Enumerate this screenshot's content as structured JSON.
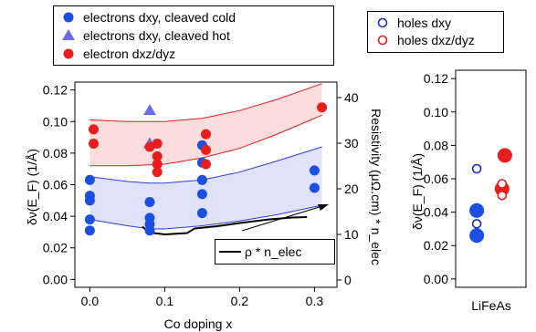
{
  "chart_data": [
    {
      "type": "scatter",
      "xlabel": "Co doping x",
      "ylabel": "δν(E_F) (1/Å)",
      "y2label": "Resistivity (μΩ.cm) * n_elec",
      "xlim": [
        -0.02,
        0.33
      ],
      "ylim": [
        -0.005,
        0.125
      ],
      "y2lim": [
        -1.6,
        43.4
      ],
      "xticks": [
        "0.0",
        "0.1",
        "0.2",
        "0.3"
      ],
      "xtick_values": [
        0.0,
        0.1,
        0.2,
        0.3
      ],
      "yticks": [
        "0.00",
        "0.02",
        "0.04",
        "0.06",
        "0.08",
        "0.10",
        "0.12"
      ],
      "ytick_values": [
        0.0,
        0.02,
        0.04,
        0.06,
        0.08,
        0.1,
        0.12
      ],
      "y2ticks": [
        "0",
        "10",
        "20",
        "30",
        "40"
      ],
      "y2tick_values": [
        0,
        10,
        20,
        30,
        40
      ],
      "series": [
        {
          "name": "electrons dxy, cleaved cold",
          "color": "#1a4fe0",
          "marker": "filled-circle",
          "points": [
            [
              0.0,
              0.063
            ],
            [
              0.0,
              0.053
            ],
            [
              0.0,
              0.05
            ],
            [
              0.0,
              0.038
            ],
            [
              0.0,
              0.031
            ],
            [
              0.08,
              0.049
            ],
            [
              0.08,
              0.039
            ],
            [
              0.08,
              0.035
            ],
            [
              0.08,
              0.031
            ],
            [
              0.15,
              0.085
            ],
            [
              0.15,
              0.074
            ],
            [
              0.15,
              0.063
            ],
            [
              0.15,
              0.054
            ],
            [
              0.15,
              0.042
            ],
            [
              0.3,
              0.069
            ],
            [
              0.3,
              0.058
            ]
          ]
        },
        {
          "name": "electrons dxy, cleaved hot",
          "color": "#6b6be6",
          "marker": "filled-triangle",
          "points": [
            [
              0.08,
              0.107
            ],
            [
              0.08,
              0.086
            ]
          ]
        },
        {
          "name": "electron dxz/dyz",
          "color": "#e81e1e",
          "marker": "filled-circle",
          "points": [
            [
              0.005,
              0.095
            ],
            [
              0.005,
              0.086
            ],
            [
              0.08,
              0.084
            ],
            [
              0.09,
              0.086
            ],
            [
              0.09,
              0.078
            ],
            [
              0.09,
              0.073
            ],
            [
              0.09,
              0.068
            ],
            [
              0.155,
              0.092
            ],
            [
              0.155,
              0.082
            ],
            [
              0.155,
              0.073
            ],
            [
              0.31,
              0.109
            ]
          ]
        },
        {
          "name": "ρ * n_elec",
          "color": "#000000",
          "axis": "y2",
          "marker": "line",
          "points": [
            [
              0.07,
              11.7
            ],
            [
              0.08,
              10.4
            ],
            [
              0.1,
              10.0
            ],
            [
              0.13,
              10.3
            ],
            [
              0.14,
              11.3
            ],
            [
              0.17,
              11.8
            ],
            [
              0.2,
              12.5
            ],
            [
              0.24,
              13.3
            ],
            [
              0.27,
              13.7
            ],
            [
              0.29,
              13.8
            ]
          ]
        }
      ],
      "bands": [
        {
          "color": "#e81e1e",
          "lower": [
            [
              0.0,
              0.072
            ],
            [
              0.05,
              0.072
            ],
            [
              0.1,
              0.073
            ],
            [
              0.15,
              0.077
            ],
            [
              0.2,
              0.083
            ],
            [
              0.25,
              0.092
            ],
            [
              0.31,
              0.104
            ]
          ],
          "upper": [
            [
              0.0,
              0.101
            ],
            [
              0.05,
              0.1
            ],
            [
              0.1,
              0.1
            ],
            [
              0.15,
              0.102
            ],
            [
              0.2,
              0.107
            ],
            [
              0.25,
              0.114
            ],
            [
              0.31,
              0.124
            ]
          ]
        },
        {
          "color": "#2a3fe0",
          "lower": [
            [
              0.0,
              0.038
            ],
            [
              0.05,
              0.034
            ],
            [
              0.08,
              0.032
            ],
            [
              0.1,
              0.032
            ],
            [
              0.15,
              0.034
            ],
            [
              0.2,
              0.037
            ],
            [
              0.25,
              0.041
            ],
            [
              0.31,
              0.047
            ]
          ],
          "upper": [
            [
              0.0,
              0.065
            ],
            [
              0.05,
              0.062
            ],
            [
              0.08,
              0.061
            ],
            [
              0.1,
              0.061
            ],
            [
              0.15,
              0.063
            ],
            [
              0.2,
              0.068
            ],
            [
              0.25,
              0.075
            ],
            [
              0.31,
              0.084
            ]
          ]
        }
      ],
      "annotation": "arrow pointing up-right"
    },
    {
      "type": "scatter",
      "xlabel": "LiFeAs",
      "ylabel": "δν(E_F) (1/Å)",
      "ylim": [
        -0.005,
        0.125
      ],
      "yticks": [
        "0.00",
        "0.02",
        "0.04",
        "0.06",
        "0.08",
        "0.10",
        "0.12"
      ],
      "ytick_values": [
        0.0,
        0.02,
        0.04,
        0.06,
        0.08,
        0.1,
        0.12
      ],
      "series": [
        {
          "name": "electrons dxy",
          "color": "#1a4fe0",
          "marker": "filled-circle",
          "sizes": [
            16,
            16
          ],
          "points": [
            [
              0.3,
              0.041
            ],
            [
              0.3,
              0.026
            ]
          ]
        },
        {
          "name": "electron dxz/dyz",
          "color": "#e81e1e",
          "marker": "filled-circle",
          "sizes": [
            16,
            16
          ],
          "points": [
            [
              0.7,
              0.074
            ],
            [
              0.66,
              0.054
            ]
          ]
        },
        {
          "name": "holes dxy",
          "color": "#1a2fd0",
          "marker": "open-circle",
          "points": [
            [
              0.3,
              0.066
            ],
            [
              0.3,
              0.033
            ]
          ]
        },
        {
          "name": "holes dxz/dyz",
          "color": "#e81e1e",
          "marker": "open-circle",
          "points": [
            [
              0.66,
              0.057
            ],
            [
              0.66,
              0.05
            ]
          ]
        }
      ]
    }
  ],
  "legend_main": {
    "items": [
      {
        "label": "electrons dxy, cleaved cold",
        "marker": "filled-circle",
        "color": "#1a4fe0"
      },
      {
        "label": "electrons dxy, cleaved hot",
        "marker": "filled-triangle",
        "color": "#6b6be6"
      },
      {
        "label": "electron dxz/dyz",
        "marker": "filled-circle",
        "color": "#e81e1e"
      }
    ]
  },
  "legend_holes": {
    "items": [
      {
        "label": "holes dxy",
        "marker": "open-circle",
        "color": "#1a2fd0"
      },
      {
        "label": "holes dxz/dyz",
        "marker": "open-circle",
        "color": "#e81e1e"
      }
    ]
  },
  "legend_resistivity": {
    "items": [
      {
        "label": "ρ * n_elec",
        "marker": "line",
        "color": "#000000"
      }
    ]
  }
}
